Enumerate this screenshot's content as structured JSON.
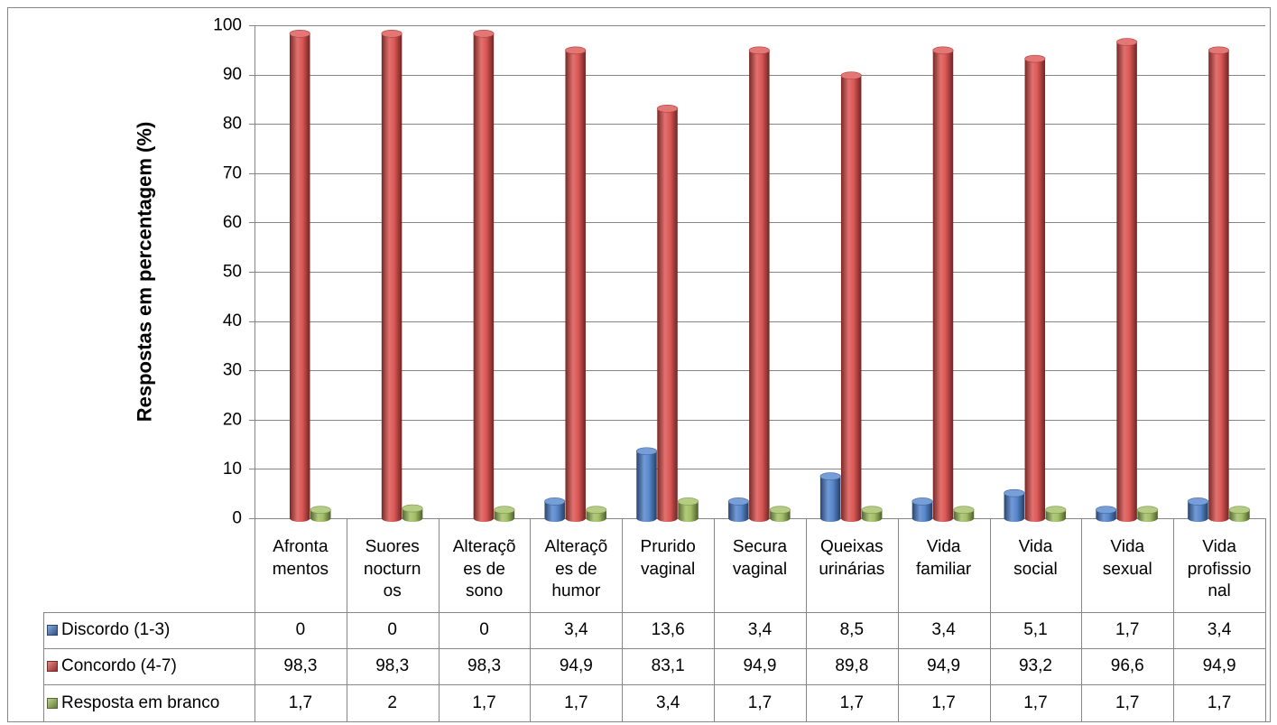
{
  "chart_data": {
    "type": "bar",
    "ylabel": "Respostas em percentagem (%)",
    "ylim": [
      0,
      100
    ],
    "yticks": [
      0,
      10,
      20,
      30,
      40,
      50,
      60,
      70,
      80,
      90,
      100
    ],
    "grid": true,
    "legend": "bottom-left",
    "data_table": true,
    "categories": [
      "Afrontamentos",
      "Suores nocturnos",
      "Alterações de sono",
      "Alterações de humor",
      "Prurido vaginal",
      "Secura vaginal",
      "Queixas urinárias",
      "Vida familiar",
      "Vida social",
      "Vida sexual",
      "Vida profissional"
    ],
    "series": [
      {
        "name": "Discordo (1-3)",
        "color": "#4a7ec9",
        "values": [
          0,
          0,
          0,
          3.4,
          13.6,
          3.4,
          8.5,
          3.4,
          5.1,
          1.7,
          3.4
        ]
      },
      {
        "name": "Concordo (4-7)",
        "color": "#d94a47",
        "values": [
          98.3,
          98.3,
          98.3,
          94.9,
          83.1,
          94.9,
          89.8,
          94.9,
          93.2,
          96.6,
          94.9
        ]
      },
      {
        "name": "Resposta em branco",
        "color": "#9bbb59",
        "values": [
          1.7,
          2,
          1.7,
          1.7,
          3.4,
          1.7,
          1.7,
          1.7,
          1.7,
          1.7,
          1.7
        ]
      }
    ]
  }
}
